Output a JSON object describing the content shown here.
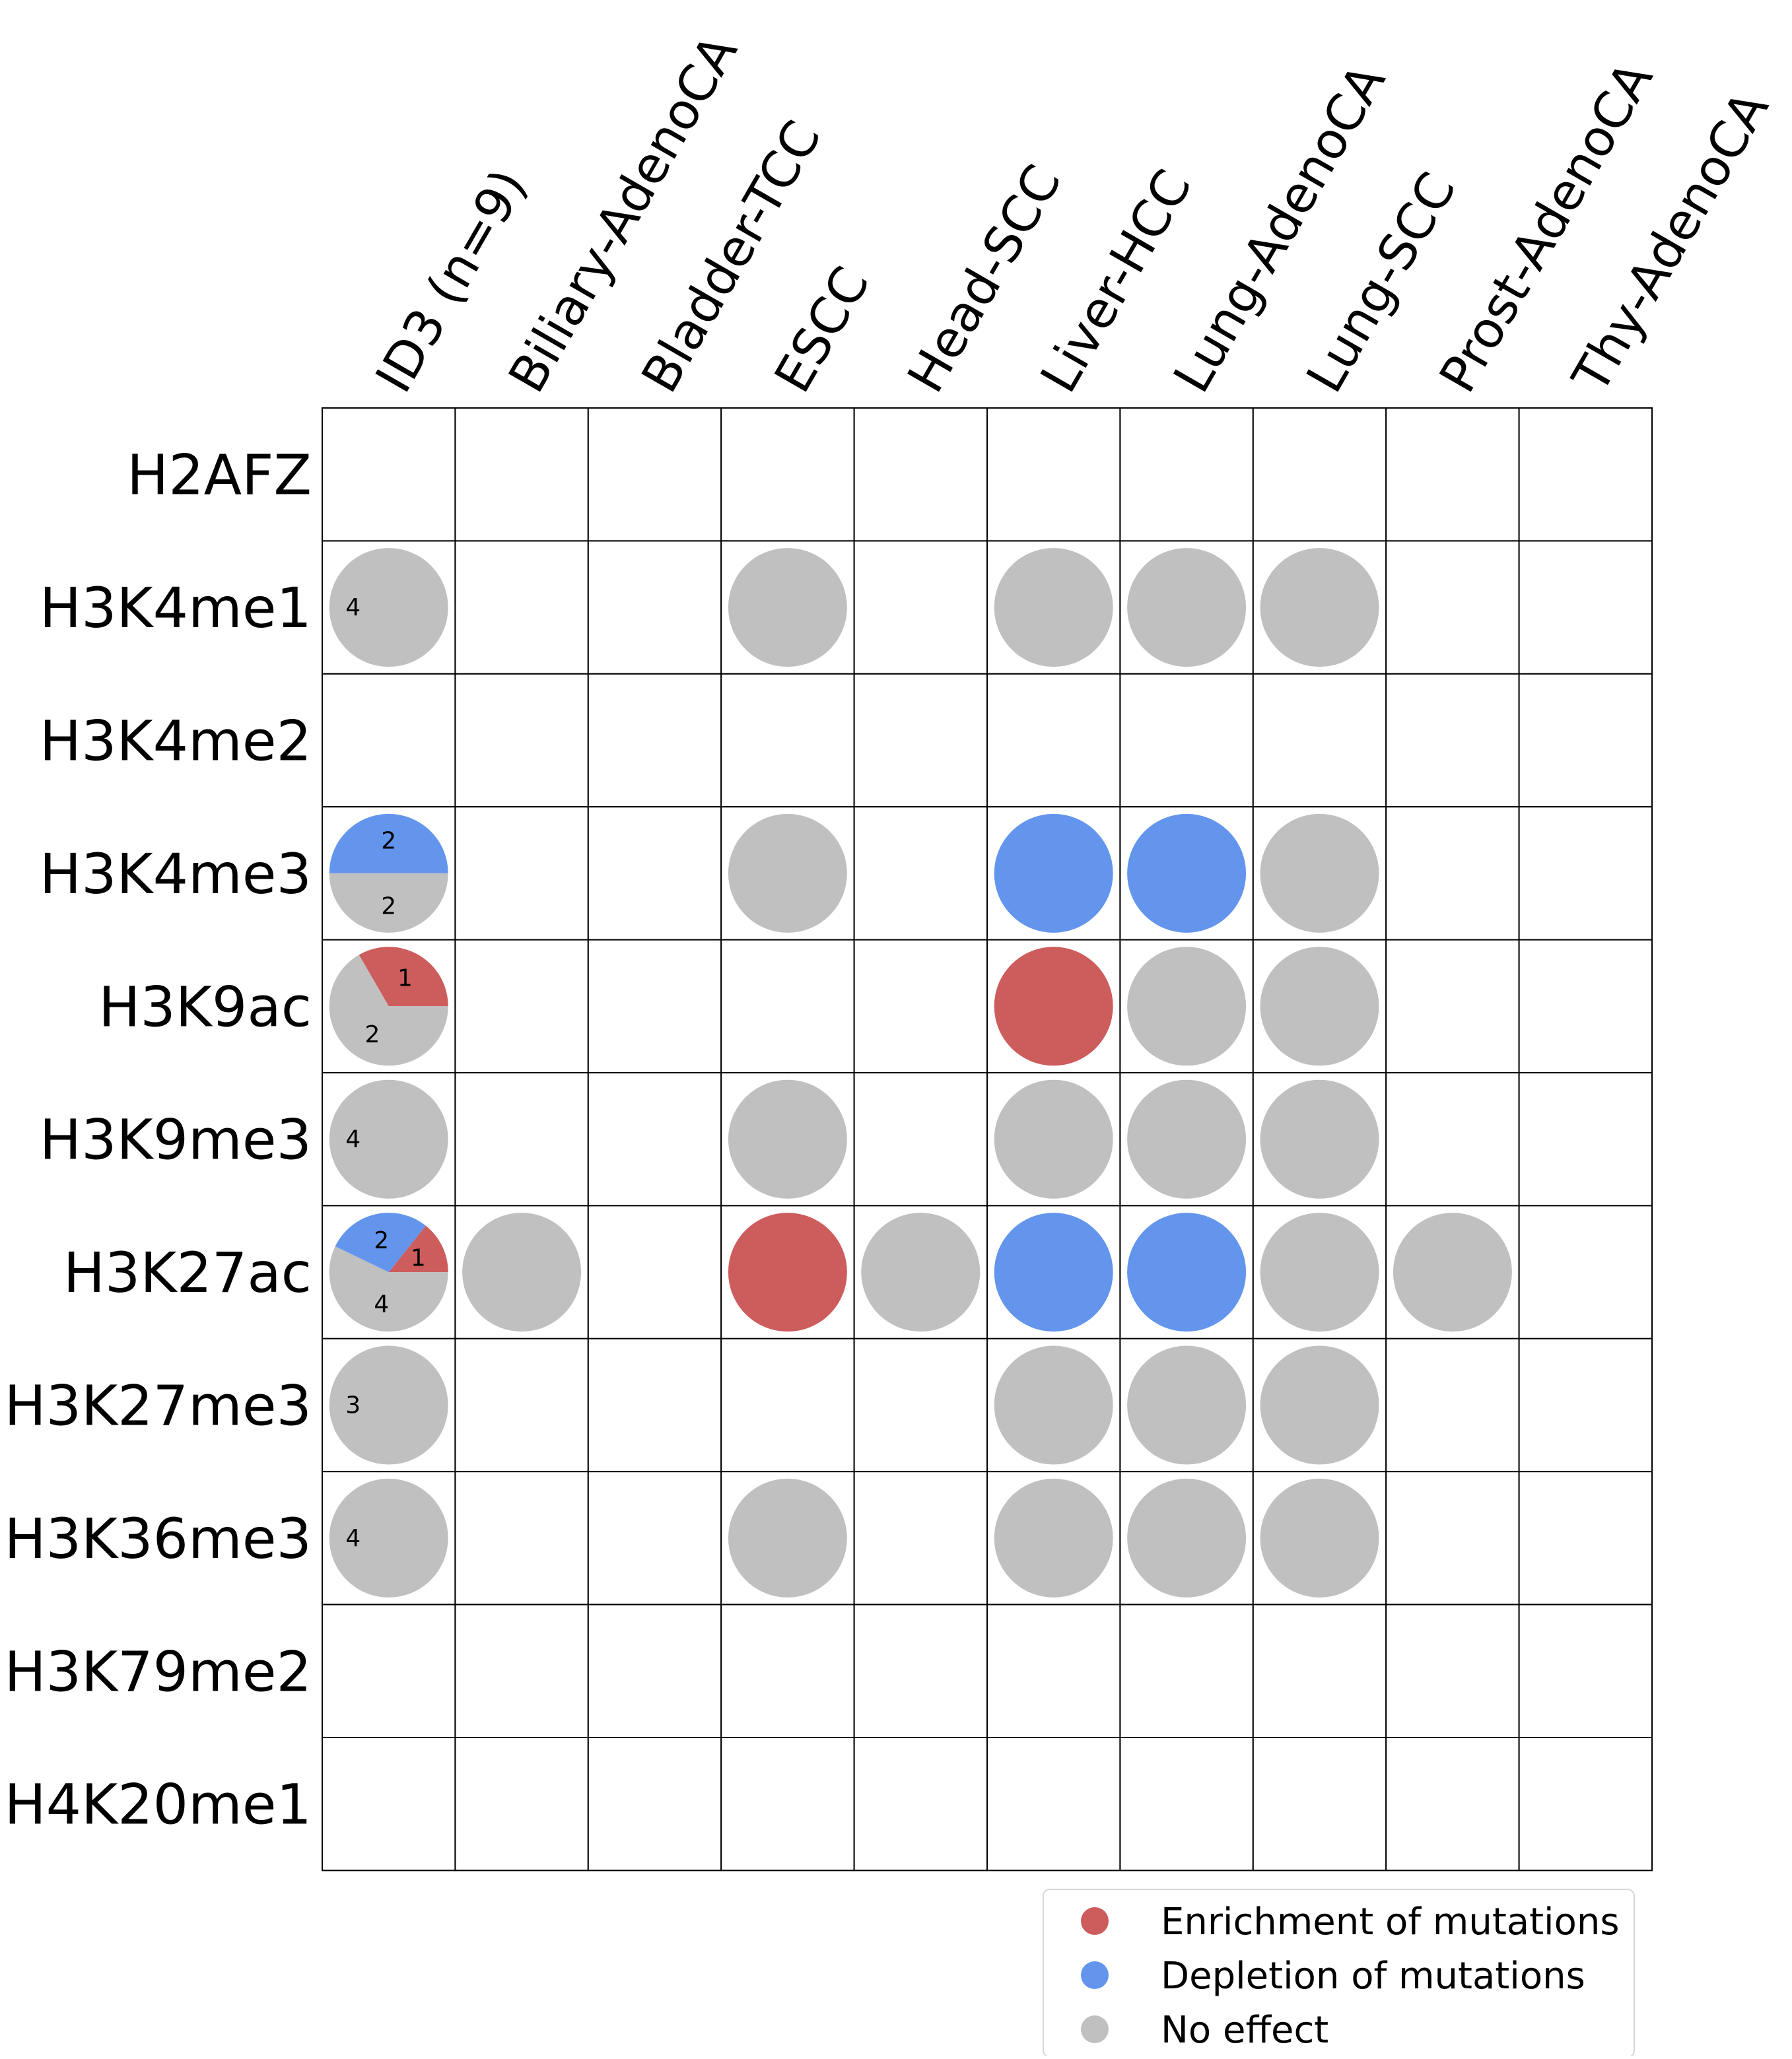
{
  "chart_data": {
    "type": "heatmap",
    "rows": [
      "H2AFZ",
      "H3K4me1",
      "H3K4me2",
      "H3K4me3",
      "H3K9ac",
      "H3K9me3",
      "H3K27ac",
      "H3K27me3",
      "H3K36me3",
      "H3K79me2",
      "H4K20me1"
    ],
    "columns": [
      "ID3 (n=9)",
      "Biliary-AdenoCA",
      "Bladder-TCC",
      "ESCC",
      "Head-SCC",
      "Liver-HCC",
      "Lung-AdenoCA",
      "Lung-SCC",
      "Prost-AdenoCA",
      "Thy-AdenoCA"
    ],
    "colors": {
      "enrichment": "#cd5c5c",
      "depletion": "#6495ed",
      "no_effect": "#c0c0c0"
    },
    "cells": [
      {
        "row": "H3K4me1",
        "col": "ID3 (n=9)",
        "enrichment": 0,
        "depletion": 0,
        "no_effect": 4
      },
      {
        "row": "H3K4me1",
        "col": "ESCC",
        "effect": "no_effect"
      },
      {
        "row": "H3K4me1",
        "col": "Liver-HCC",
        "effect": "no_effect"
      },
      {
        "row": "H3K4me1",
        "col": "Lung-AdenoCA",
        "effect": "no_effect"
      },
      {
        "row": "H3K4me1",
        "col": "Lung-SCC",
        "effect": "no_effect"
      },
      {
        "row": "H3K4me3",
        "col": "ID3 (n=9)",
        "enrichment": 0,
        "depletion": 2,
        "no_effect": 2
      },
      {
        "row": "H3K4me3",
        "col": "ESCC",
        "effect": "no_effect"
      },
      {
        "row": "H3K4me3",
        "col": "Liver-HCC",
        "effect": "depletion"
      },
      {
        "row": "H3K4me3",
        "col": "Lung-AdenoCA",
        "effect": "depletion"
      },
      {
        "row": "H3K4me3",
        "col": "Lung-SCC",
        "effect": "no_effect"
      },
      {
        "row": "H3K9ac",
        "col": "ID3 (n=9)",
        "enrichment": 1,
        "depletion": 0,
        "no_effect": 2
      },
      {
        "row": "H3K9ac",
        "col": "Liver-HCC",
        "effect": "enrichment"
      },
      {
        "row": "H3K9ac",
        "col": "Lung-AdenoCA",
        "effect": "no_effect"
      },
      {
        "row": "H3K9ac",
        "col": "Lung-SCC",
        "effect": "no_effect"
      },
      {
        "row": "H3K9me3",
        "col": "ID3 (n=9)",
        "enrichment": 0,
        "depletion": 0,
        "no_effect": 4
      },
      {
        "row": "H3K9me3",
        "col": "ESCC",
        "effect": "no_effect"
      },
      {
        "row": "H3K9me3",
        "col": "Liver-HCC",
        "effect": "no_effect"
      },
      {
        "row": "H3K9me3",
        "col": "Lung-AdenoCA",
        "effect": "no_effect"
      },
      {
        "row": "H3K9me3",
        "col": "Lung-SCC",
        "effect": "no_effect"
      },
      {
        "row": "H3K27ac",
        "col": "ID3 (n=9)",
        "enrichment": 1,
        "depletion": 2,
        "no_effect": 4
      },
      {
        "row": "H3K27ac",
        "col": "Biliary-AdenoCA",
        "effect": "no_effect"
      },
      {
        "row": "H3K27ac",
        "col": "ESCC",
        "effect": "enrichment"
      },
      {
        "row": "H3K27ac",
        "col": "Head-SCC",
        "effect": "no_effect"
      },
      {
        "row": "H3K27ac",
        "col": "Liver-HCC",
        "effect": "depletion"
      },
      {
        "row": "H3K27ac",
        "col": "Lung-AdenoCA",
        "effect": "depletion"
      },
      {
        "row": "H3K27ac",
        "col": "Lung-SCC",
        "effect": "no_effect"
      },
      {
        "row": "H3K27ac",
        "col": "Prost-AdenoCA",
        "effect": "no_effect"
      },
      {
        "row": "H3K27me3",
        "col": "ID3 (n=9)",
        "enrichment": 0,
        "depletion": 0,
        "no_effect": 3
      },
      {
        "row": "H3K27me3",
        "col": "Liver-HCC",
        "effect": "no_effect"
      },
      {
        "row": "H3K27me3",
        "col": "Lung-AdenoCA",
        "effect": "no_effect"
      },
      {
        "row": "H3K27me3",
        "col": "Lung-SCC",
        "effect": "no_effect"
      },
      {
        "row": "H3K36me3",
        "col": "ID3 (n=9)",
        "enrichment": 0,
        "depletion": 0,
        "no_effect": 4
      },
      {
        "row": "H3K36me3",
        "col": "ESCC",
        "effect": "no_effect"
      },
      {
        "row": "H3K36me3",
        "col": "Liver-HCC",
        "effect": "no_effect"
      },
      {
        "row": "H3K36me3",
        "col": "Lung-AdenoCA",
        "effect": "no_effect"
      },
      {
        "row": "H3K36me3",
        "col": "Lung-SCC",
        "effect": "no_effect"
      }
    ],
    "legend": {
      "position": "bottom-right",
      "items": [
        {
          "label": "Enrichment of mutations",
          "key": "enrichment"
        },
        {
          "label": "Depletion of mutations",
          "key": "depletion"
        },
        {
          "label": "No effect",
          "key": "no_effect"
        }
      ]
    }
  }
}
